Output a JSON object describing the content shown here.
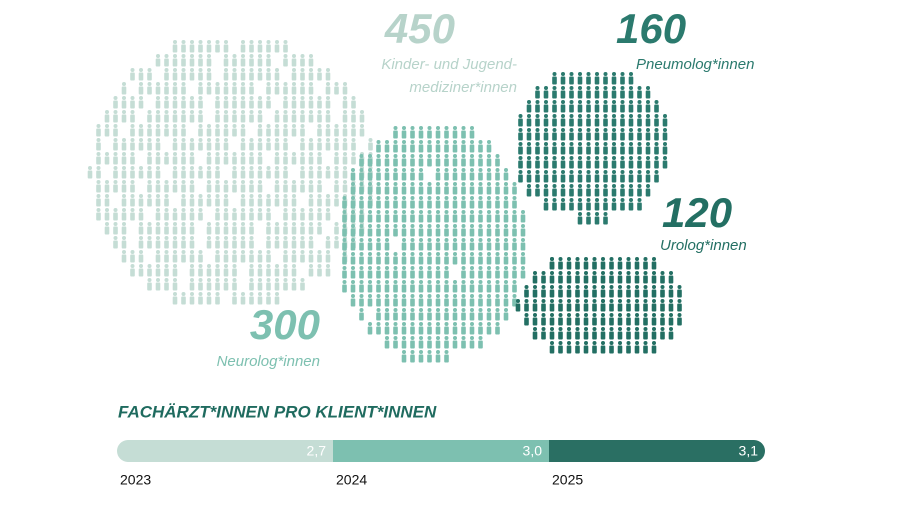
{
  "clusters": [
    {
      "value": 450,
      "label": [
        "Kinder- und Jugend-",
        "mediziner*innen"
      ],
      "color": "#c5ddd5",
      "text_color": "#b7d3ca"
    },
    {
      "value": 300,
      "label": [
        "Neurolog*innen"
      ],
      "color": "#7dc0b0",
      "text_color": "#7dc0b0"
    },
    {
      "value": 160,
      "label": [
        "Pneumolog*innen"
      ],
      "color": "#2b7a6e",
      "text_color": "#2b7a6e"
    },
    {
      "value": 120,
      "label": [
        "Urolog*innen"
      ],
      "color": "#236f63",
      "text_color": "#236f63"
    }
  ],
  "bar": {
    "title": "FACHÄRZT*INNEN PRO KLIENT*INNEN",
    "categories": [
      "2023",
      "2024",
      "2025"
    ],
    "value_labels": [
      "2,7",
      "3,0",
      "3,1"
    ],
    "colors": [
      "#c5ddd5",
      "#7dc0b0",
      "#2a6f63"
    ]
  }
}
